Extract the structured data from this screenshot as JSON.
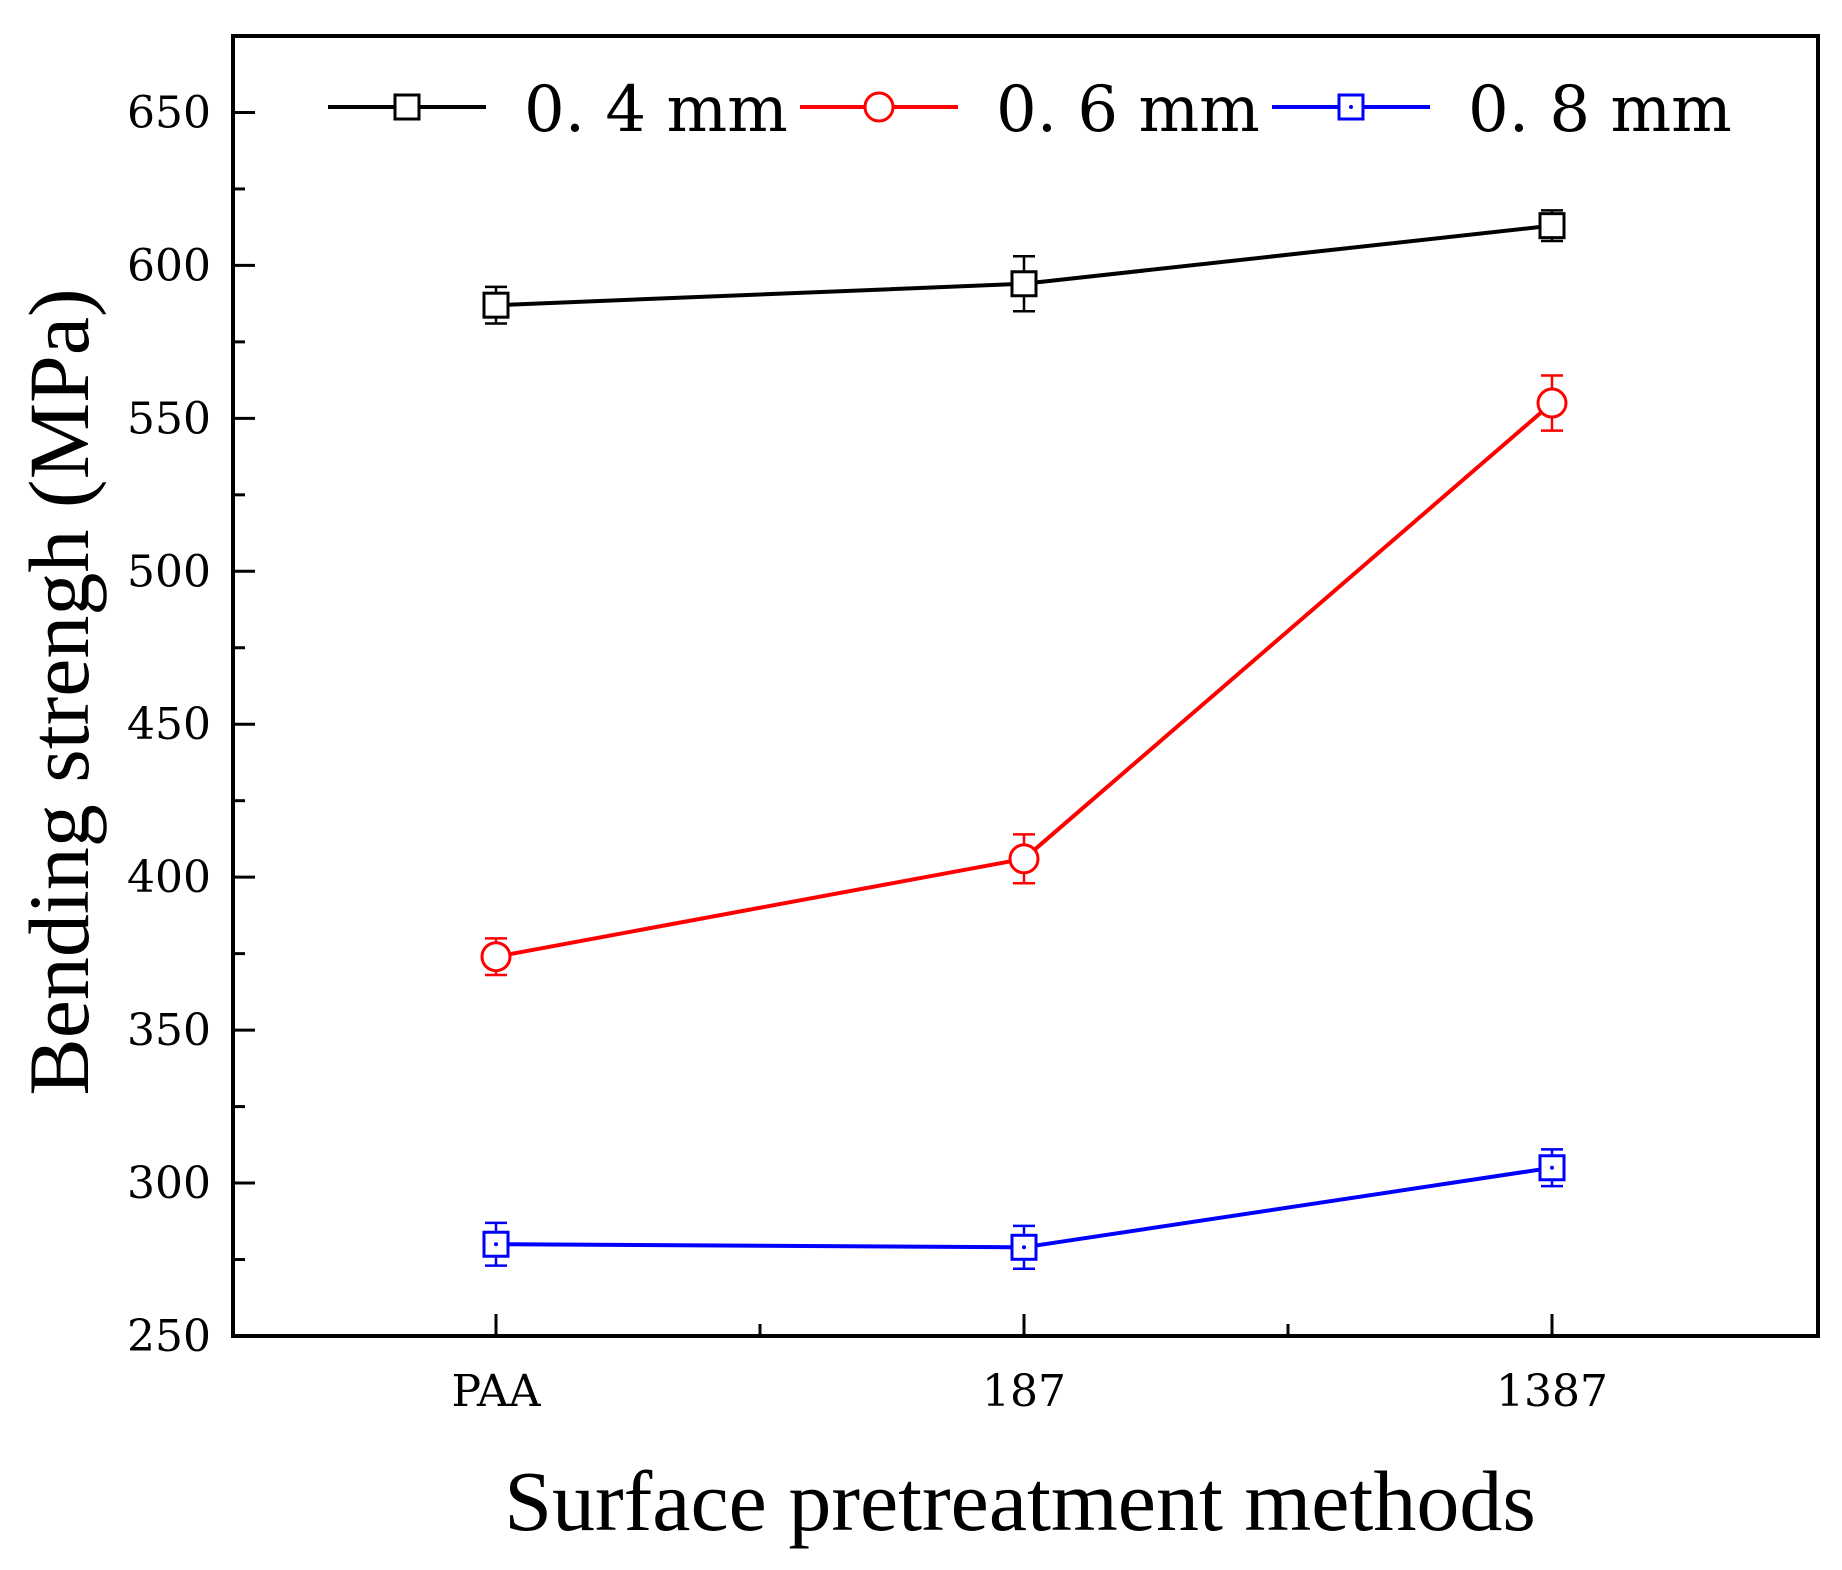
{
  "chart_data": {
    "type": "line",
    "title": "",
    "xlabel": "Surface pretreatment methods",
    "ylabel": "Bending strengh (MPa)",
    "categories": [
      "PAA",
      "187",
      "1387"
    ],
    "ylim": [
      250,
      675
    ],
    "yticks": [
      250,
      300,
      350,
      400,
      450,
      500,
      550,
      600,
      650
    ],
    "ytick_labels": [
      "250",
      "300",
      "350",
      "400",
      "450",
      "500",
      "550",
      "600",
      "650"
    ],
    "legend_position": "top",
    "grid": false,
    "series": [
      {
        "name": "0.4 mm",
        "legend_label": "0. 4  mm",
        "color": "#000000",
        "marker": "square",
        "values": [
          587,
          594,
          613
        ],
        "errors": [
          6,
          9,
          5
        ]
      },
      {
        "name": "0.6 mm",
        "legend_label": "0. 6  mm",
        "color": "#ff0000",
        "marker": "circle",
        "values": [
          374,
          406,
          555
        ],
        "errors": [
          6,
          8,
          9
        ]
      },
      {
        "name": "0.8 mm",
        "legend_label": "0. 8  mm",
        "color": "#0000ff",
        "marker": "square-dot",
        "values": [
          280,
          279,
          305
        ],
        "errors": [
          7,
          7,
          6
        ]
      }
    ]
  }
}
